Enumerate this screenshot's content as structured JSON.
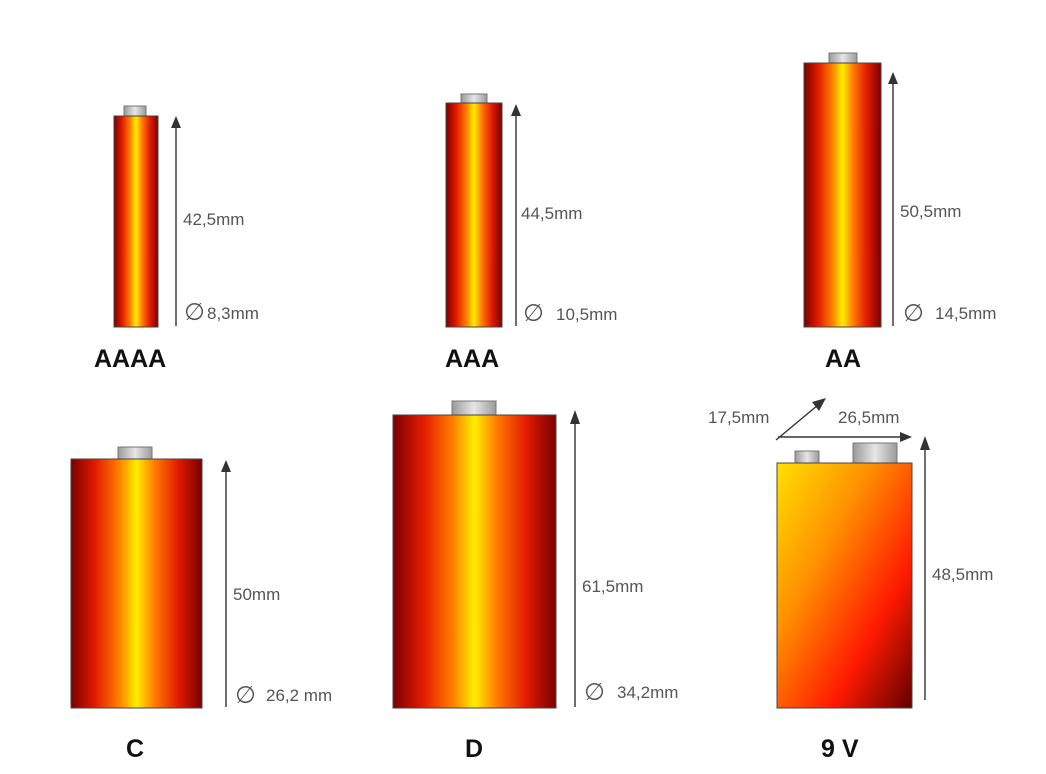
{
  "batteries": [
    {
      "name": "AAAA",
      "height": "42,5mm",
      "diameter": "8,3mm"
    },
    {
      "name": "AAA",
      "height": "44,5mm",
      "diameter": "10,5mm"
    },
    {
      "name": "AA",
      "height": "50,5mm",
      "diameter": "14,5mm"
    },
    {
      "name": "C",
      "height": "50mm",
      "diameter": "26,2 mm"
    },
    {
      "name": "D",
      "height": "61,5mm",
      "diameter": "34,2mm"
    }
  ],
  "nine_volt": {
    "name": "9 V",
    "height": "48,5mm",
    "depth": "17,5mm",
    "width": "26,5mm"
  },
  "diameter_symbol": "∅",
  "colors": {
    "cylinder_edge": "#8a0000",
    "cylinder_mid": "#ff2a00",
    "cylinder_center": "#ffee00",
    "terminal": "#c8c8c8"
  }
}
